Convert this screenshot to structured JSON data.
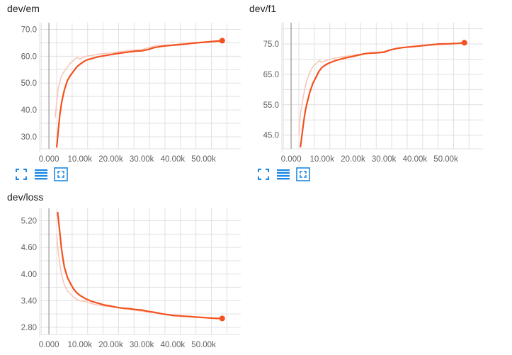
{
  "colors": {
    "line": "#f4511e",
    "raw_line": "#f8c4b4",
    "grid": "#e0e0e0",
    "origin_line": "#9e9e9e",
    "tick_text": "#616161",
    "icon": "#1e88e5"
  },
  "toolbar_icons": [
    "fit-domain-icon",
    "toggle-log-scale-icon",
    "fit-to-data-icon"
  ],
  "chart_data": [
    {
      "type": "line",
      "title": "dev/em",
      "xlabel": "",
      "ylabel": "",
      "xlim": [
        -3000,
        62000
      ],
      "ylim": [
        25.5,
        72.5
      ],
      "xticks": [
        0,
        10000,
        20000,
        30000,
        40000,
        50000
      ],
      "xtick_labels": [
        "0.000",
        "10.00k",
        "20.00k",
        "30.00k",
        "40.00k",
        "50.00k"
      ],
      "yticks": [
        30,
        40,
        50,
        60,
        70
      ],
      "ytick_labels": [
        "30.0",
        "40.0",
        "50.0",
        "60.0",
        "70.0"
      ],
      "grid": true,
      "series": [
        {
          "role": "raw",
          "x": [
            2000,
            3000,
            4000,
            5000,
            6000,
            7000,
            8000,
            9000,
            10000,
            12000,
            14000,
            16000,
            18000,
            20000,
            25000,
            30000,
            35000,
            40000,
            45000,
            50000,
            55000
          ],
          "y": [
            37,
            48,
            52.5,
            54.5,
            56,
            57.5,
            58.5,
            59.5,
            59,
            60,
            60.3,
            60.8,
            61,
            61.2,
            62,
            62.5,
            64,
            64.3,
            65,
            65.3,
            65.5
          ]
        },
        {
          "role": "smoothed",
          "x": [
            2500,
            3000,
            3500,
            4000,
            4500,
            5000,
            6000,
            7000,
            8000,
            9000,
            10000,
            11000,
            12000,
            14000,
            16000,
            18000,
            20000,
            22000,
            24000,
            26000,
            28000,
            30000,
            32000,
            34000,
            36000,
            38000,
            40000,
            42000,
            44000,
            46000,
            48000,
            50000,
            52000,
            54000,
            56000
          ],
          "y": [
            26,
            32,
            38,
            42,
            45,
            47.5,
            51,
            53,
            54.5,
            56,
            57,
            57.8,
            58.5,
            59.2,
            59.8,
            60.2,
            60.6,
            61.0,
            61.3,
            61.6,
            61.9,
            62.0,
            62.5,
            63.2,
            63.6,
            63.9,
            64.1,
            64.3,
            64.5,
            64.8,
            65.0,
            65.2,
            65.4,
            65.6,
            65.8
          ]
        }
      ]
    },
    {
      "type": "line",
      "title": "dev/f1",
      "xlabel": "",
      "ylabel": "",
      "xlim": [
        -3000,
        62000
      ],
      "ylim": [
        40.5,
        82
      ],
      "xticks": [
        0,
        10000,
        20000,
        30000,
        40000,
        50000
      ],
      "xtick_labels": [
        "0.000",
        "10.00k",
        "20.00k",
        "30.00k",
        "40.00k",
        "50.00k"
      ],
      "yticks": [
        45,
        55,
        65,
        75
      ],
      "ytick_labels": [
        "45.0",
        "55.0",
        "65.0",
        "75.0"
      ],
      "grid": true,
      "series": [
        {
          "role": "raw",
          "x": [
            2500,
            3000,
            4000,
            5000,
            6000,
            7000,
            8000,
            9000,
            10000,
            12000,
            14000,
            16000,
            18000,
            20000,
            25000,
            30000,
            35000,
            40000,
            45000,
            50000,
            55000
          ],
          "y": [
            45,
            52,
            58,
            63,
            65.5,
            67.5,
            68.5,
            69.5,
            69,
            69.8,
            70.3,
            70.7,
            71,
            71.3,
            72,
            72.5,
            73.8,
            74.1,
            74.6,
            74.9,
            75.2
          ]
        },
        {
          "role": "smoothed",
          "x": [
            3000,
            3500,
            4000,
            4500,
            5000,
            6000,
            7000,
            8000,
            9000,
            10000,
            11000,
            12000,
            14000,
            16000,
            18000,
            20000,
            22000,
            24000,
            26000,
            28000,
            30000,
            32000,
            34000,
            36000,
            38000,
            40000,
            42000,
            44000,
            46000,
            48000,
            50000,
            52000,
            54000,
            56000
          ],
          "y": [
            41,
            45,
            49,
            52.5,
            55,
            59,
            62,
            64,
            66,
            67.3,
            68.0,
            68.6,
            69.4,
            70.0,
            70.5,
            70.9,
            71.4,
            71.8,
            72.0,
            72.1,
            72.3,
            73.0,
            73.5,
            73.8,
            74.0,
            74.2,
            74.4,
            74.6,
            74.8,
            75.0,
            75.0,
            75.1,
            75.2,
            75.4
          ]
        }
      ]
    },
    {
      "type": "line",
      "title": "dev/loss",
      "xlabel": "",
      "ylabel": "",
      "xlim": [
        -3000,
        62000
      ],
      "ylim": [
        2.64,
        5.48
      ],
      "xticks": [
        0,
        10000,
        20000,
        30000,
        40000,
        50000
      ],
      "xtick_labels": [
        "0.000",
        "10.00k",
        "20.00k",
        "30.00k",
        "40.00k",
        "50.00k"
      ],
      "yticks": [
        2.8,
        3.4,
        4.0,
        4.6,
        5.2
      ],
      "ytick_labels": [
        "2.80",
        "3.40",
        "4.00",
        "4.60",
        "5.20"
      ],
      "grid": true,
      "series": [
        {
          "role": "raw",
          "x": [
            2500,
            3000,
            4000,
            5000,
            6000,
            7000,
            8000,
            9000,
            10000,
            12000,
            14000,
            16000,
            18000,
            20000,
            25000,
            30000,
            35000,
            40000,
            45000,
            50000,
            55000
          ],
          "y": [
            4.9,
            4.5,
            4.0,
            3.75,
            3.62,
            3.55,
            3.48,
            3.43,
            3.4,
            3.38,
            3.33,
            3.3,
            3.28,
            3.26,
            3.22,
            3.16,
            3.12,
            3.06,
            3.04,
            3.02,
            3.0
          ]
        },
        {
          "role": "smoothed",
          "x": [
            2800,
            3500,
            4000,
            4500,
            5000,
            6000,
            7000,
            8000,
            9000,
            10000,
            11000,
            12000,
            14000,
            16000,
            18000,
            20000,
            22000,
            24000,
            26000,
            28000,
            30000,
            32000,
            34000,
            36000,
            38000,
            40000,
            42000,
            44000,
            46000,
            48000,
            50000,
            52000,
            54000,
            56000
          ],
          "y": [
            5.4,
            4.95,
            4.6,
            4.35,
            4.15,
            3.92,
            3.78,
            3.66,
            3.58,
            3.52,
            3.48,
            3.44,
            3.38,
            3.34,
            3.3,
            3.28,
            3.25,
            3.23,
            3.22,
            3.2,
            3.19,
            3.16,
            3.14,
            3.11,
            3.09,
            3.07,
            3.06,
            3.05,
            3.04,
            3.03,
            3.02,
            3.01,
            3.0,
            3.0
          ]
        }
      ]
    }
  ]
}
